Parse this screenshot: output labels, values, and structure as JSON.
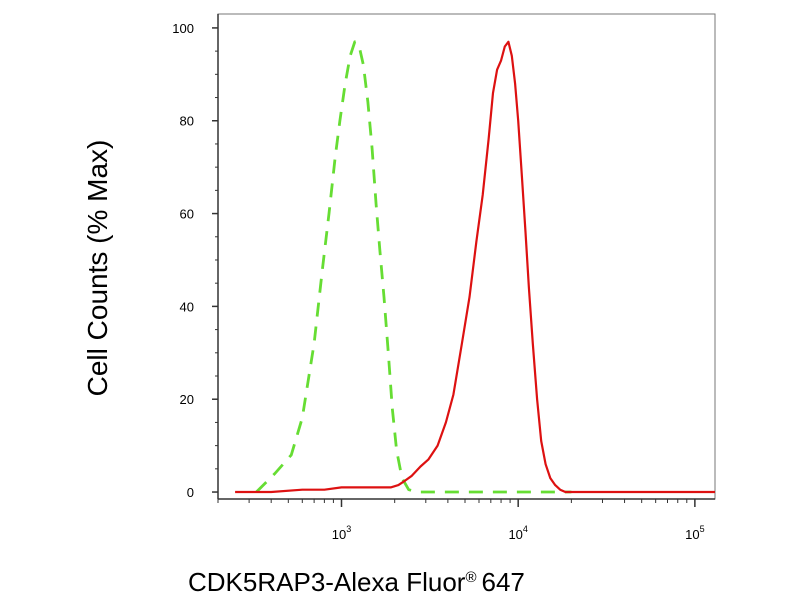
{
  "chart_data": {
    "type": "line",
    "title": "",
    "xlabel": "CDK5RAP3-Alexa Fluor",
    "xlabel_mark": "®",
    "xlabel_suffix": "647",
    "ylabel": "Cell Counts (% Max)",
    "xscale": "log",
    "xlim": [
      200,
      130000
    ],
    "ylim": [
      -1.5,
      103
    ],
    "grid": false,
    "legend": "none",
    "yticks": [
      0,
      20,
      40,
      60,
      80,
      100
    ],
    "ytick_labels": [
      "0",
      "20",
      "40",
      "60",
      "80",
      "100"
    ],
    "xticks": [
      1000,
      10000,
      100000
    ],
    "xtick_labels": [
      {
        "base": "10",
        "exp": "3"
      },
      {
        "base": "10",
        "exp": "4"
      },
      {
        "base": "10",
        "exp": "5"
      }
    ],
    "series": [
      {
        "color": "#66dd33",
        "dash": "dashed",
        "x": [
          330,
          420,
          520,
          600,
          700,
          780,
          850,
          920,
          980,
          1050,
          1120,
          1190,
          1260,
          1330,
          1410,
          1490,
          1570,
          1650,
          1740,
          1840,
          1940,
          2050,
          2200,
          2400,
          2700,
          3200,
          4000,
          5500,
          8000,
          12000,
          20000
        ],
        "y": [
          0,
          4,
          8,
          16,
          32,
          48,
          60,
          72,
          80,
          88,
          94,
          97,
          96,
          92,
          84,
          74,
          62,
          52,
          42,
          30,
          18,
          9,
          3,
          0.5,
          0,
          0,
          0,
          0,
          0,
          0,
          0
        ]
      },
      {
        "color": "#dd1111",
        "dash": "solid",
        "x": [
          250,
          400,
          600,
          800,
          1000,
          1300,
          1600,
          1900,
          2100,
          2300,
          2500,
          2800,
          3100,
          3500,
          3900,
          4300,
          4800,
          5300,
          5800,
          6300,
          6800,
          7200,
          7600,
          8000,
          8400,
          8800,
          9200,
          9600,
          10000,
          10500,
          11000,
          11500,
          12100,
          12800,
          13500,
          14300,
          15200,
          16200,
          17300,
          18500,
          20000,
          22000,
          25000,
          30000,
          40000,
          60000,
          100000,
          130000
        ],
        "y": [
          0,
          0,
          0.5,
          0.5,
          1,
          1,
          1,
          1,
          1.5,
          2.5,
          3.5,
          5.5,
          7,
          10,
          15,
          21,
          32,
          42,
          54,
          64,
          76,
          86,
          91,
          93,
          96,
          97,
          94,
          88,
          80,
          68,
          56,
          44,
          32,
          20,
          11,
          6,
          3,
          1.5,
          0.5,
          0,
          0,
          0,
          0,
          0,
          0,
          0,
          0,
          0
        ]
      }
    ]
  }
}
